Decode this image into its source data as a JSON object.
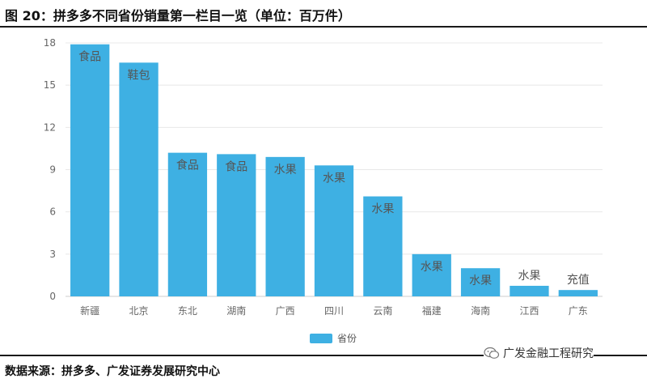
{
  "title": "图 20：拼多多不同省份销量第一栏目一览（单位：百万件）",
  "source": "数据来源：拼多多、广发证券发展研究中心",
  "watermark": "广发金融工程研究",
  "colors": {
    "bar": "#3EB0E3",
    "grid": "#e8e8e8",
    "axis": "#cccccc",
    "tick_text": "#666666",
    "label_text": "#555555"
  },
  "chart_data": {
    "type": "bar",
    "title": "",
    "xlabel": "",
    "ylabel": "",
    "ylim": [
      0,
      18
    ],
    "yticks": [
      "0",
      "3",
      "6",
      "9",
      "12",
      "15",
      "18"
    ],
    "grid": true,
    "legend": {
      "position": "bottom-center",
      "entries": [
        "省份"
      ]
    },
    "categories": [
      "新疆",
      "北京",
      "东北",
      "湖南",
      "广西",
      "四川",
      "云南",
      "福建",
      "海南",
      "江西",
      "广东"
    ],
    "series": [
      {
        "name": "省份",
        "values": [
          17.9,
          16.6,
          10.2,
          10.1,
          9.9,
          9.3,
          7.1,
          3.0,
          2.0,
          0.75,
          0.45
        ],
        "labels": [
          "食品",
          "鞋包",
          "食品",
          "食品",
          "水果",
          "水果",
          "水果",
          "水果",
          "水果",
          "水果",
          "充值"
        ]
      }
    ]
  }
}
